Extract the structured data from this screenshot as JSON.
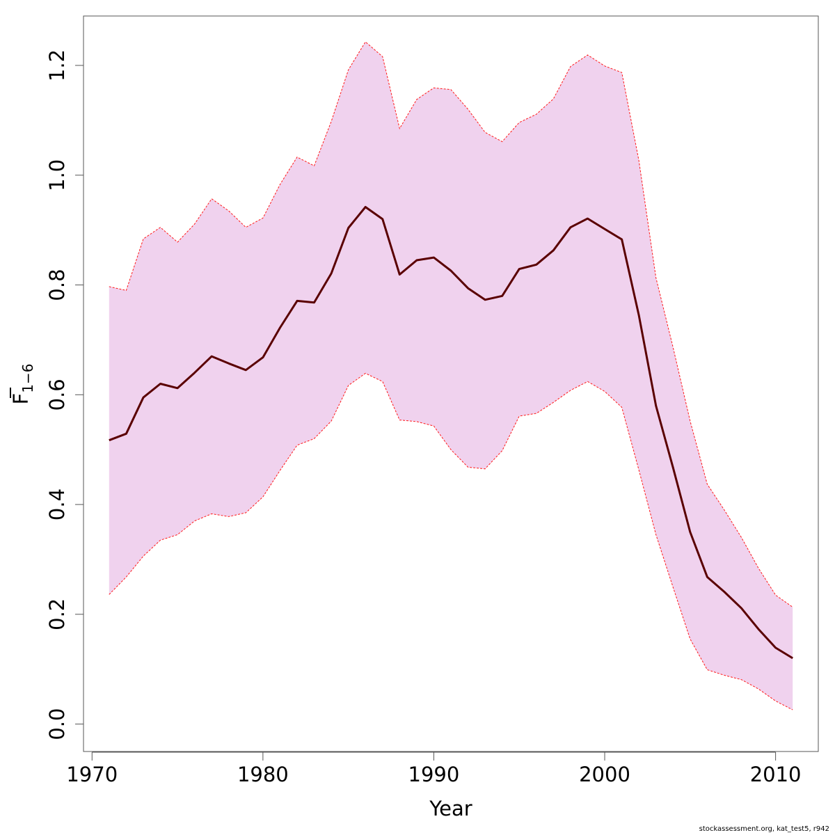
{
  "chart_data": {
    "type": "line",
    "title": "",
    "xlabel": "Year",
    "ylabel": {
      "main": "F",
      "subscript": "1−6"
    },
    "xlim": [
      1969.5,
      2012.5
    ],
    "ylim": [
      -0.05,
      1.29
    ],
    "xticks": [
      1970,
      1980,
      1990,
      2000,
      2010
    ],
    "ytick_values": [
      0.0,
      0.2,
      0.4,
      0.6,
      0.8,
      1.0,
      1.2
    ],
    "ytick_labels": [
      "0.0",
      "0.2",
      "0.4",
      "0.6",
      "0.8",
      "1.0",
      "1.2"
    ],
    "grid": false,
    "legend": "none",
    "colors": {
      "band_fill": "#f0d2ee",
      "band_edge": "#ff1a1a",
      "line": "#5a0000",
      "axis": "#555555"
    },
    "x": [
      1971,
      1972,
      1973,
      1974,
      1975,
      1976,
      1977,
      1978,
      1979,
      1980,
      1981,
      1982,
      1983,
      1984,
      1985,
      1986,
      1987,
      1988,
      1989,
      1990,
      1991,
      1992,
      1993,
      1994,
      1995,
      1996,
      1997,
      1998,
      1999,
      2000,
      2001,
      2002,
      2003,
      2004,
      2005,
      2006,
      2007,
      2008,
      2009,
      2010,
      2011
    ],
    "series": [
      {
        "role": "estimate",
        "values": [
          0.517,
          0.529,
          0.595,
          0.62,
          0.612,
          0.64,
          0.67,
          0.657,
          0.645,
          0.668,
          0.722,
          0.771,
          0.768,
          0.821,
          0.904,
          0.942,
          0.92,
          0.819,
          0.845,
          0.85,
          0.826,
          0.794,
          0.773,
          0.78,
          0.829,
          0.837,
          0.863,
          0.905,
          0.921,
          0.902,
          0.883,
          0.745,
          0.58,
          0.467,
          0.35,
          0.268,
          0.241,
          0.211,
          0.173,
          0.139,
          0.12
        ]
      },
      {
        "role": "upper",
        "values": [
          0.797,
          0.79,
          0.884,
          0.905,
          0.878,
          0.911,
          0.957,
          0.935,
          0.905,
          0.922,
          0.983,
          1.033,
          1.017,
          1.098,
          1.192,
          1.243,
          1.216,
          1.085,
          1.138,
          1.159,
          1.156,
          1.12,
          1.078,
          1.061,
          1.096,
          1.111,
          1.139,
          1.198,
          1.219,
          1.199,
          1.187,
          1.027,
          0.813,
          0.686,
          0.552,
          0.437,
          0.39,
          0.34,
          0.284,
          0.235,
          0.213
        ]
      },
      {
        "role": "lower",
        "values": [
          0.236,
          0.268,
          0.306,
          0.335,
          0.345,
          0.37,
          0.383,
          0.378,
          0.385,
          0.414,
          0.462,
          0.508,
          0.52,
          0.552,
          0.617,
          0.639,
          0.624,
          0.554,
          0.551,
          0.543,
          0.5,
          0.468,
          0.465,
          0.498,
          0.561,
          0.566,
          0.586,
          0.608,
          0.624,
          0.606,
          0.577,
          0.463,
          0.345,
          0.249,
          0.155,
          0.099,
          0.089,
          0.081,
          0.064,
          0.042,
          0.026
        ]
      }
    ]
  },
  "footer": "stockassessment.org, kat_test5, r942"
}
